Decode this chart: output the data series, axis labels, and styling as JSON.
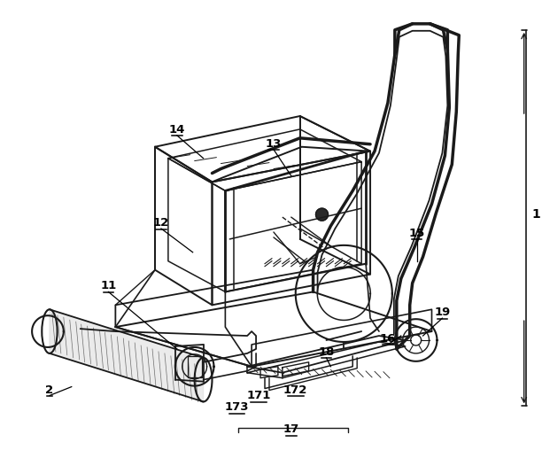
{
  "background_color": "#ffffff",
  "line_color": "#1a1a1a",
  "figure_width": 6.12,
  "figure_height": 5.17,
  "dpi": 100
}
